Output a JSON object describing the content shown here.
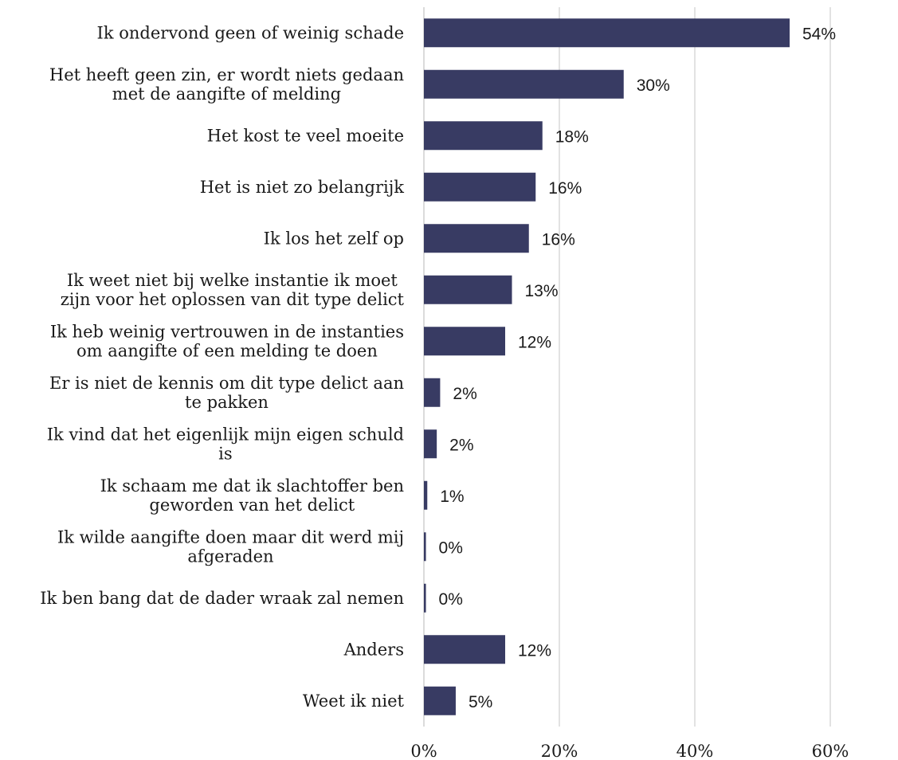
{
  "chart_data": {
    "type": "bar",
    "orientation": "horizontal",
    "bar_color": "#383b63",
    "categories": [
      [
        "Ik ondervond geen of weinig schade"
      ],
      [
        "Het heeft geen zin, er wordt niets gedaan",
        "met de aangifte of melding"
      ],
      [
        "Het kost te veel moeite"
      ],
      [
        "Het is niet zo belangrijk"
      ],
      [
        "Ik los het zelf op"
      ],
      [
        "Ik weet niet bij welke instantie ik moet",
        "zijn voor het oplossen van dit type delict"
      ],
      [
        "Ik heb weinig vertrouwen in de instanties",
        "om aangifte of een melding te doen"
      ],
      [
        "Er is niet de kennis om dit type delict aan",
        "te pakken"
      ],
      [
        "Ik vind dat het eigenlijk mijn eigen schuld",
        "is"
      ],
      [
        "Ik schaam me dat ik slachtoffer ben",
        "geworden van het delict"
      ],
      [
        "Ik wilde aangifte doen maar dit werd mij",
        "afgeraden"
      ],
      [
        "Ik ben bang dat de dader wraak zal nemen"
      ],
      [
        "Anders"
      ],
      [
        "Weet ik niet"
      ]
    ],
    "values": [
      54,
      29.5,
      17.5,
      16.5,
      15.5,
      13,
      12,
      2.4,
      1.9,
      0.5,
      0.3,
      0.3,
      12,
      4.7
    ],
    "value_labels": [
      "54%",
      "30%",
      "18%",
      "16%",
      "16%",
      "13%",
      "12%",
      "2%",
      "2%",
      "1%",
      "0%",
      "0%",
      "12%",
      "5%"
    ],
    "xlim": [
      0,
      60
    ],
    "xticks": [
      0,
      20,
      40,
      60
    ],
    "xtick_labels": [
      "0%",
      "20%",
      "40%",
      "60%"
    ],
    "grid": true,
    "title": "",
    "xlabel": "",
    "ylabel": ""
  }
}
